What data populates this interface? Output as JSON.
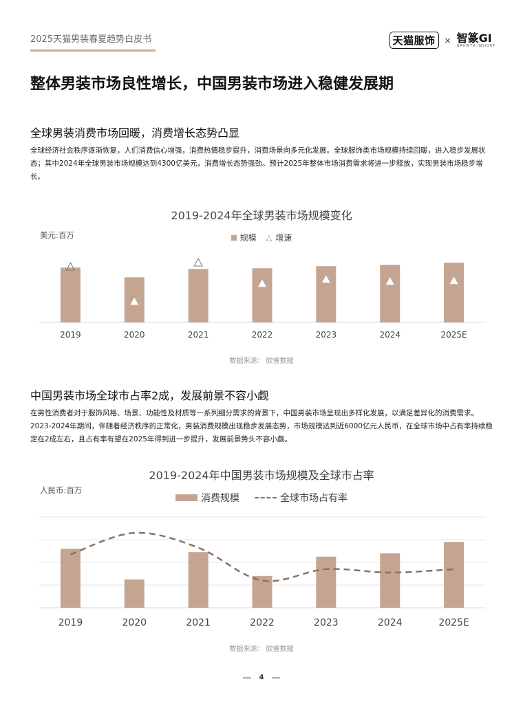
{
  "header": {
    "doc_title": "2025天猫男装春夏趋势白皮书",
    "logo_tmall": "天猫服饰",
    "logo_separator": "×",
    "logo_zc": "智篆GI",
    "logo_zc_sub": "GROWTH INSIGHT"
  },
  "main_heading": "整体男装市场良性增长，中国男装市场进入稳健发展期",
  "section1": {
    "heading": "全球男装消费市场回暖，消费增长态势凸显",
    "paragraph": "全球经济社会秩序逐渐恢复，人们消费信心增强，消费热情稳步提升，消费场景向多元化发展。全球服饰类市场规模持续回暖，进入稳步发展状态；其中2024年全球男装市场规模达到4300亿美元，消费增长态势强劲。预计2025年整体市场消费需求将进一步释放，实现男装市场稳步增长。"
  },
  "section2": {
    "heading": "中国男装市场全球市占率2成，发展前景不容小觑",
    "paragraph": "在男性消费者对于服饰风格、场景、功能性及材质等一系列细分需求的背景下，中国男装市场呈现出多样化发展，以满足差异化的消费需求。2023-2024年期间，伴随着经济秩序的正常化，男装消费规模出现稳步发展态势，市场规模达到近6000亿元人民币，在全球市场中占有率持续稳定在2成左右，且占有率有望在2025年得到进一步提升，发展前景势头不容小觑。"
  },
  "chart_data": [
    {
      "type": "bar",
      "title": "2019-2024年全球男装市场规模变化",
      "unit_label": "美元:百万",
      "legend": {
        "bar": "规模",
        "marker": "增速"
      },
      "categories": [
        "2019",
        "2020",
        "2021",
        "2022",
        "2023",
        "2024",
        "2025E"
      ],
      "series": [
        {
          "name": "规模",
          "kind": "bar",
          "values": [
            79,
            65,
            77,
            78,
            81,
            83,
            86
          ]
        },
        {
          "name": "增速",
          "kind": "marker",
          "values": [
            80,
            30,
            86,
            56,
            62,
            59,
            60
          ]
        }
      ],
      "ylim": [
        0,
        100
      ],
      "grid": true,
      "source": "数据来源：  欧睿数据",
      "colors": {
        "bar": "#c4a591",
        "marker": "#ffffff"
      }
    },
    {
      "type": "bar",
      "title": "2019-2024年中国男装市场规模及全球市占率",
      "unit_label": "人民币:百万",
      "legend": {
        "bar": "消费规模",
        "line": "全球市场占有率"
      },
      "categories": [
        "2019",
        "2020",
        "2021",
        "2022",
        "2023",
        "2024",
        "2025E"
      ],
      "series": [
        {
          "name": "消费规模",
          "kind": "bar",
          "values": [
            2.6,
            1.25,
            2.45,
            1.4,
            2.25,
            2.4,
            2.9
          ]
        },
        {
          "name": "全球市场占有率",
          "kind": "line",
          "values": [
            2.35,
            3.3,
            2.65,
            1.2,
            1.7,
            1.55,
            1.7
          ]
        }
      ],
      "ylim": [
        0,
        4
      ],
      "grid": true,
      "source": "数据来源：  欧睿数据",
      "colors": {
        "bar": "#c4a591",
        "line": "#8a7262"
      }
    }
  ],
  "footer": {
    "page_number": "4"
  }
}
